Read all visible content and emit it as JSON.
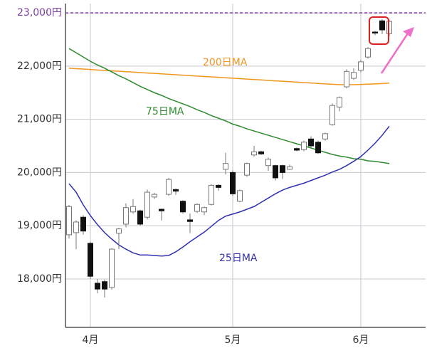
{
  "chart_data": {
    "type": "candlestick",
    "categories": [
      null,
      null,
      null,
      "4月",
      null,
      null,
      null,
      null,
      null,
      null,
      null,
      null,
      null,
      null,
      null,
      null,
      null,
      null,
      null,
      null,
      null,
      null,
      null,
      "5月",
      null,
      null,
      null,
      null,
      null,
      null,
      null,
      null,
      null,
      null,
      null,
      null,
      null,
      null,
      null,
      null,
      null,
      "6月",
      null,
      null,
      null,
      null
    ],
    "open": [
      18830,
      18870,
      19160,
      18670,
      17920,
      17950,
      17840,
      18860,
      19030,
      19260,
      19280,
      19160,
      19540,
      19310,
      19590,
      19680,
      19460,
      19110,
      19270,
      19260,
      19400,
      19760,
      20060,
      20000,
      19460,
      19950,
      20330,
      20390,
      20130,
      20130,
      20130,
      20060,
      20450,
      20430,
      20630,
      20570,
      20630,
      20900,
      21230,
      21610,
      21770,
      21920,
      22170,
      22640,
      22850,
      22610
    ],
    "high": [
      19390,
      19100,
      19200,
      18700,
      18000,
      17990,
      18580,
      18960,
      19420,
      19500,
      19300,
      19680,
      19620,
      19320,
      19900,
      19700,
      19480,
      19230,
      19420,
      19360,
      19780,
      19780,
      20370,
      20040,
      19680,
      20190,
      20500,
      20410,
      20280,
      20150,
      20150,
      20150,
      20470,
      20600,
      20680,
      20600,
      20750,
      21300,
      21430,
      21940,
      21960,
      22120,
      22360,
      22660,
      22880,
      22870
    ],
    "low": [
      18760,
      18560,
      18830,
      18000,
      17730,
      17650,
      17800,
      18560,
      18970,
      19230,
      19000,
      19120,
      19500,
      19100,
      19560,
      19580,
      19230,
      18860,
      19240,
      19200,
      19380,
      19660,
      19960,
      19560,
      19440,
      19920,
      20300,
      20330,
      20030,
      19850,
      19880,
      20050,
      20400,
      20400,
      20450,
      20350,
      20600,
      20880,
      21150,
      21580,
      21740,
      21880,
      22140,
      22580,
      22600,
      22560
    ],
    "close": [
      19360,
      19070,
      18900,
      18050,
      17810,
      17810,
      18560,
      18940,
      19340,
      19360,
      19030,
      19630,
      19590,
      19280,
      19870,
      19650,
      19260,
      19080,
      19400,
      19340,
      19760,
      19720,
      20170,
      19600,
      19660,
      20170,
      20390,
      20350,
      20250,
      19900,
      20000,
      20110,
      20420,
      20570,
      20500,
      20370,
      20730,
      21260,
      21410,
      21900,
      21880,
      22080,
      22330,
      22620,
      22680,
      22840
    ],
    "up_color": "#ffffff",
    "down_color": "#111111",
    "series": [
      {
        "name": "200日MA",
        "color": "#f0961e",
        "values": [
          21960,
          21952,
          21944,
          21936,
          21927,
          21919,
          21911,
          21903,
          21895,
          21887,
          21878,
          21870,
          21862,
          21854,
          21846,
          21838,
          21829,
          21821,
          21813,
          21805,
          21797,
          21789,
          21780,
          21772,
          21764,
          21756,
          21748,
          21740,
          21731,
          21723,
          21715,
          21707,
          21699,
          21691,
          21682,
          21674,
          21666,
          21658,
          21650,
          21650,
          21650,
          21655,
          21660,
          21665,
          21672,
          21680
        ]
      },
      {
        "name": "75日MA",
        "color": "#2e8b2e",
        "values": [
          22330,
          22250,
          22170,
          22090,
          22020,
          21960,
          21890,
          21820,
          21760,
          21690,
          21620,
          21560,
          21500,
          21450,
          21390,
          21340,
          21290,
          21240,
          21180,
          21130,
          21070,
          21020,
          20970,
          20910,
          20870,
          20820,
          20780,
          20740,
          20700,
          20660,
          20620,
          20580,
          20540,
          20500,
          20460,
          20420,
          20380,
          20340,
          20310,
          20290,
          20260,
          20250,
          20220,
          20210,
          20190,
          20170
        ]
      },
      {
        "name": "25日MA",
        "color": "#3030b0",
        "values": [
          19790,
          19630,
          19390,
          19190,
          19020,
          18870,
          18750,
          18640,
          18560,
          18490,
          18450,
          18450,
          18440,
          18430,
          18440,
          18510,
          18600,
          18700,
          18790,
          18880,
          18990,
          19100,
          19180,
          19220,
          19260,
          19310,
          19360,
          19440,
          19520,
          19600,
          19670,
          19720,
          19760,
          19800,
          19850,
          19900,
          19950,
          20010,
          20060,
          20130,
          20210,
          20300,
          20420,
          20550,
          20700,
          20870
        ]
      }
    ],
    "reference_line": {
      "value": 23000,
      "color": "#7b3fa0"
    },
    "ylim": [
      17090,
      23175
    ],
    "yticks": [
      {
        "value": 18000,
        "label": "18,000円"
      },
      {
        "value": 19000,
        "label": "19,000円"
      },
      {
        "value": 20000,
        "label": "20,000円"
      },
      {
        "value": 21000,
        "label": "21,000円"
      },
      {
        "value": 22000,
        "label": "22,000円"
      },
      {
        "value": 23000,
        "label": "23,000円"
      }
    ],
    "grid": true
  }
}
